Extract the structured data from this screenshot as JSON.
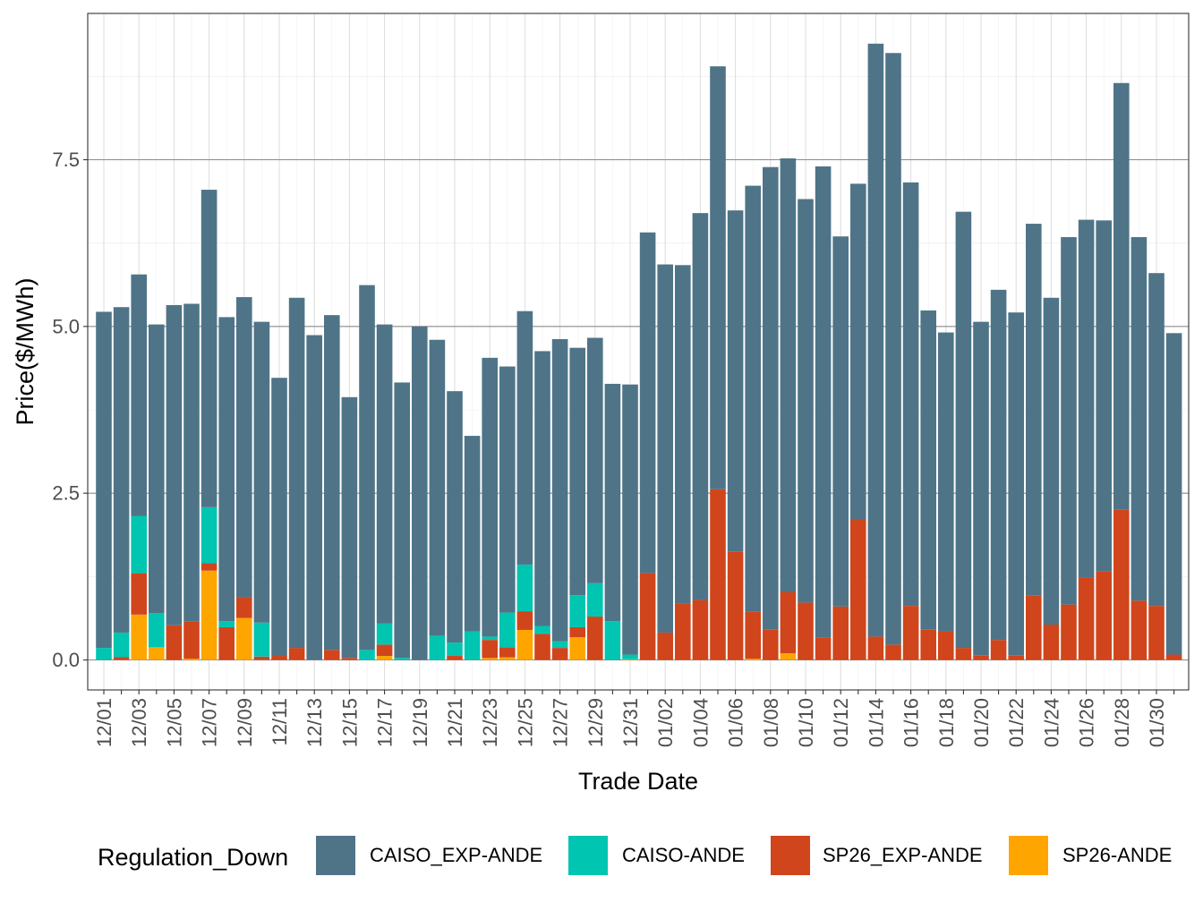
{
  "chart_data": {
    "type": "bar",
    "stacked": true,
    "title": "",
    "xlabel": "Trade Date",
    "ylabel": "Price($/MWh)",
    "ylim": [
      -0.45,
      9.7
    ],
    "yticks": [
      0.0,
      2.5,
      5.0,
      7.5
    ],
    "ytick_labels": [
      "0.0",
      "2.5",
      "5.0",
      "7.5"
    ],
    "legend_title": "Regulation_Down",
    "legend_position": "bottom",
    "categories": [
      "12/01",
      "12/02",
      "12/03",
      "12/04",
      "12/05",
      "12/06",
      "12/07",
      "12/08",
      "12/09",
      "12/10",
      "12/11",
      "12/12",
      "12/13",
      "12/14",
      "12/15",
      "12/16",
      "12/17",
      "12/18",
      "12/19",
      "12/20",
      "12/21",
      "12/22",
      "12/23",
      "12/24",
      "12/25",
      "12/26",
      "12/27",
      "12/28",
      "12/29",
      "12/30",
      "12/31",
      "01/01",
      "01/02",
      "01/03",
      "01/04",
      "01/05",
      "01/06",
      "01/07",
      "01/08",
      "01/09",
      "01/10",
      "01/11",
      "01/12",
      "01/13",
      "01/14",
      "01/15",
      "01/16",
      "01/17",
      "01/18",
      "01/19",
      "01/20",
      "01/21",
      "01/22",
      "01/23",
      "01/24",
      "01/25",
      "01/26",
      "01/27",
      "01/28",
      "01/29",
      "01/30",
      "01/31"
    ],
    "xtick_labels": [
      "12/01",
      "12/03",
      "12/05",
      "12/07",
      "12/09",
      "12/11",
      "12/13",
      "12/15",
      "12/17",
      "12/19",
      "12/21",
      "12/23",
      "12/25",
      "12/27",
      "12/29",
      "12/31",
      "01/02",
      "01/04",
      "01/06",
      "01/08",
      "01/10",
      "01/12",
      "01/14",
      "01/16",
      "01/18",
      "01/20",
      "01/22",
      "01/24",
      "01/26",
      "01/28",
      "01/30"
    ],
    "stack_order_bottom_to_top": [
      "SP26-ANDE",
      "SP26_EXP-ANDE",
      "CAISO-ANDE",
      "CAISO_EXP-ANDE"
    ],
    "series": [
      {
        "name": "CAISO_EXP-ANDE",
        "color": "#4f7488",
        "values": [
          5.04,
          4.88,
          3.62,
          4.33,
          4.8,
          4.76,
          4.76,
          4.56,
          4.5,
          4.51,
          4.17,
          5.25,
          4.87,
          5.02,
          3.91,
          5.47,
          4.48,
          4.13,
          5.0,
          4.44,
          3.77,
          2.93,
          4.18,
          3.69,
          3.8,
          4.12,
          4.53,
          3.71,
          3.68,
          3.56,
          4.05,
          5.11,
          5.52,
          5.08,
          5.8,
          6.34,
          5.12,
          6.39,
          6.93,
          6.5,
          6.05,
          7.06,
          5.55,
          5.04,
          8.89,
          8.87,
          6.35,
          4.78,
          4.48,
          6.54,
          5.0,
          5.25,
          5.14,
          5.57,
          4.9,
          5.51,
          5.36,
          5.26,
          6.4,
          5.45,
          4.99,
          4.82
        ]
      },
      {
        "name": "CAISO-ANDE",
        "color": "#00c5b0",
        "values": [
          0.18,
          0.37,
          0.86,
          0.51,
          0.0,
          0.0,
          0.84,
          0.09,
          0.0,
          0.51,
          0.0,
          0.0,
          0.0,
          0.0,
          0.0,
          0.15,
          0.32,
          0.03,
          0.0,
          0.36,
          0.2,
          0.43,
          0.05,
          0.52,
          0.7,
          0.12,
          0.1,
          0.48,
          0.5,
          0.58,
          0.07,
          0.0,
          0.0,
          0.0,
          0.0,
          0.0,
          0.0,
          0.0,
          0.0,
          0.0,
          0.0,
          0.0,
          0.0,
          0.0,
          0.0,
          0.0,
          0.0,
          0.0,
          0.0,
          0.0,
          0.0,
          0.0,
          0.0,
          0.0,
          0.0,
          0.0,
          0.0,
          0.0,
          0.0,
          0.0,
          0.0,
          0.0
        ]
      },
      {
        "name": "SP26_EXP-ANDE",
        "color": "#d0451b",
        "values": [
          0.0,
          0.04,
          0.62,
          0.0,
          0.52,
          0.56,
          0.11,
          0.49,
          0.31,
          0.05,
          0.06,
          0.18,
          0.0,
          0.15,
          0.03,
          0.0,
          0.17,
          0.0,
          0.0,
          0.0,
          0.06,
          0.0,
          0.27,
          0.15,
          0.28,
          0.39,
          0.18,
          0.15,
          0.65,
          0.0,
          0.0,
          1.3,
          0.41,
          0.84,
          0.9,
          2.56,
          1.62,
          0.7,
          0.46,
          0.92,
          0.86,
          0.34,
          0.8,
          2.1,
          0.35,
          0.23,
          0.81,
          0.46,
          0.43,
          0.18,
          0.07,
          0.3,
          0.07,
          0.97,
          0.53,
          0.83,
          1.24,
          1.33,
          2.25,
          0.89,
          0.81,
          0.08
        ]
      },
      {
        "name": "SP26-ANDE",
        "color": "#ffa500",
        "values": [
          0.0,
          0.0,
          0.68,
          0.19,
          0.0,
          0.02,
          1.34,
          0.0,
          0.63,
          0.0,
          0.0,
          0.0,
          0.0,
          0.0,
          0.0,
          0.0,
          0.06,
          0.0,
          0.0,
          0.0,
          0.0,
          0.0,
          0.03,
          0.04,
          0.45,
          0.0,
          0.0,
          0.34,
          0.0,
          0.0,
          0.01,
          0.0,
          0.0,
          0.0,
          0.0,
          0.0,
          0.0,
          0.02,
          0.0,
          0.1,
          0.0,
          0.0,
          0.0,
          0.0,
          0.0,
          0.0,
          0.0,
          0.0,
          0.0,
          0.0,
          0.0,
          0.0,
          0.0,
          0.0,
          0.0,
          0.0,
          0.0,
          0.0,
          0.0,
          0.0,
          0.0,
          0.0
        ]
      }
    ]
  }
}
